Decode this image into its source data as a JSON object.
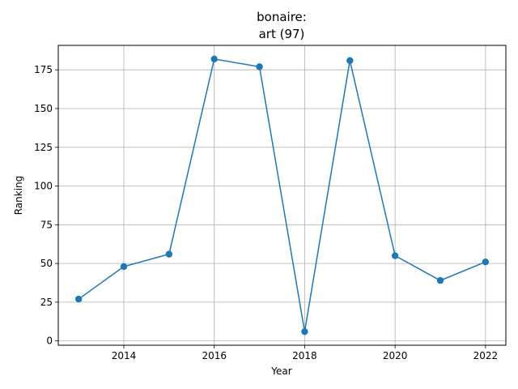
{
  "chart_data": {
    "type": "line",
    "title_line1": "bonaire:",
    "title_line2": "art (97)",
    "xlabel": "Year",
    "ylabel": "Ranking",
    "x": [
      2013,
      2014,
      2015,
      2016,
      2017,
      2018,
      2019,
      2020,
      2021,
      2022
    ],
    "series": [
      {
        "values": [
          27,
          48,
          56,
          182,
          177,
          6,
          181,
          55,
          39,
          51
        ]
      }
    ],
    "xlim": [
      2012.55,
      2022.45
    ],
    "ylim": [
      -2.8,
      190.8
    ],
    "xticks": [
      2014,
      2016,
      2018,
      2020,
      2022
    ],
    "yticks": [
      0,
      25,
      50,
      75,
      100,
      125,
      150,
      175
    ],
    "grid": true,
    "markers": true,
    "line_color": "#1f77b4"
  }
}
